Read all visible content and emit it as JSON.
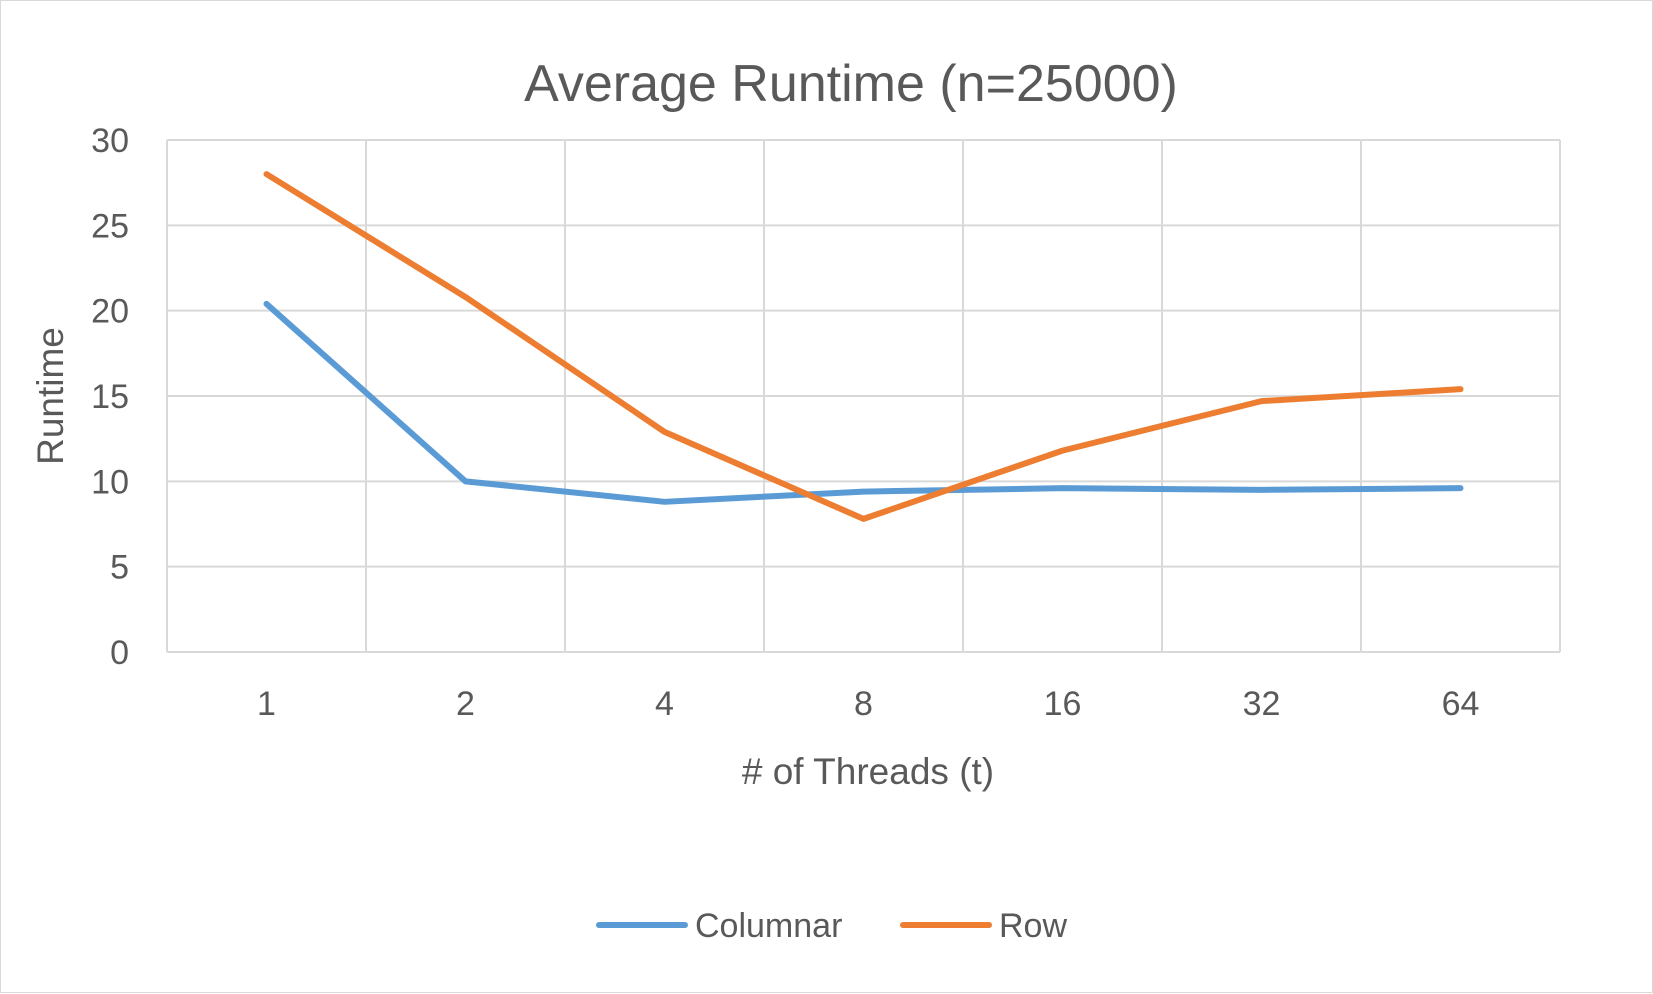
{
  "chart_data": {
    "type": "line",
    "title": "Average Runtime (n=25000)",
    "xlabel": "# of Threads (t)",
    "ylabel": "Runtime",
    "categories": [
      "1",
      "2",
      "4",
      "8",
      "16",
      "32",
      "64"
    ],
    "series": [
      {
        "name": "Columnar",
        "values": [
          20.4,
          10.0,
          8.8,
          9.4,
          9.6,
          9.5,
          9.6
        ],
        "color": "#5b9bd5"
      },
      {
        "name": "Row",
        "values": [
          28.0,
          20.8,
          12.9,
          7.8,
          11.8,
          14.7,
          15.4
        ],
        "color": "#ed7d31"
      }
    ],
    "ylim": [
      0,
      30
    ],
    "yticks": [
      0,
      5,
      10,
      15,
      20,
      25,
      30
    ],
    "grid": true,
    "legend_position": "bottom",
    "gridline_color": "#d9d9d9",
    "text_color": "#595959"
  }
}
